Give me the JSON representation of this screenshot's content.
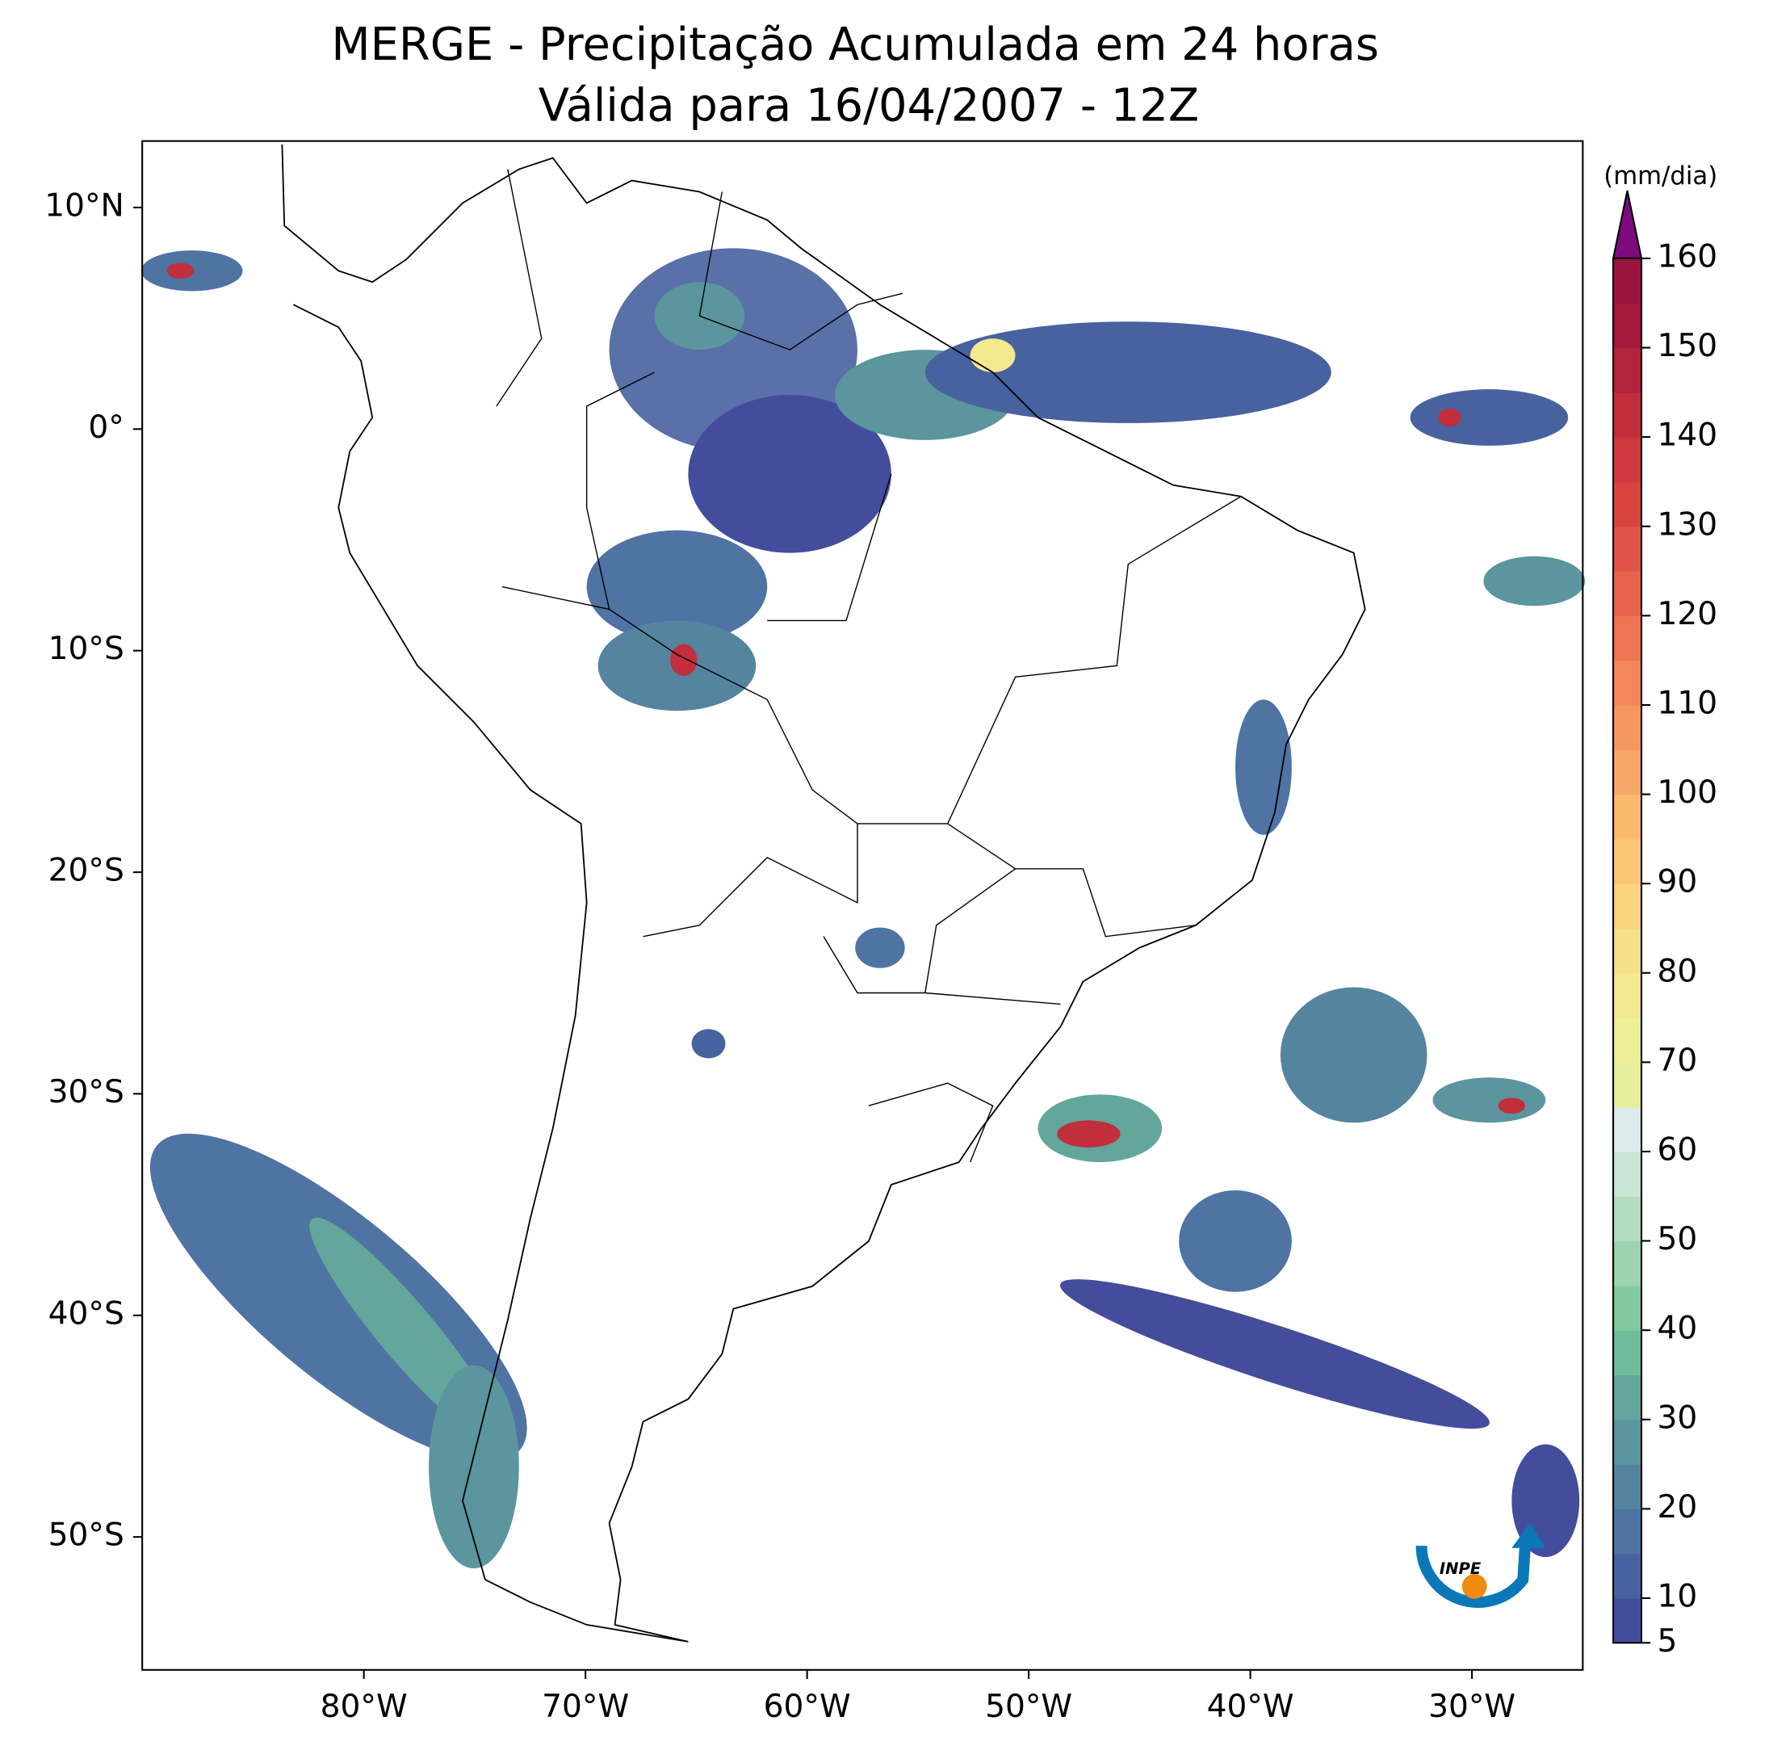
{
  "title": "MERGE - Precipitação Acumulada em 24 horas",
  "subtitle": "Válida para 16/04/2007 - 12Z",
  "map": {
    "xlim": [
      -90,
      -25
    ],
    "ylim": [
      -56,
      13
    ],
    "xticks": [
      {
        "value": -80,
        "label": "80°W"
      },
      {
        "value": -70,
        "label": "70°W"
      },
      {
        "value": -60,
        "label": "60°W"
      },
      {
        "value": -50,
        "label": "50°W"
      },
      {
        "value": -40,
        "label": "40°W"
      },
      {
        "value": -30,
        "label": "30°W"
      }
    ],
    "yticks": [
      {
        "value": 10,
        "label": "10°N"
      },
      {
        "value": 0,
        "label": "0°"
      },
      {
        "value": -10,
        "label": "10°S"
      },
      {
        "value": -20,
        "label": "20°S"
      },
      {
        "value": -30,
        "label": "30°S"
      },
      {
        "value": -40,
        "label": "40°S"
      },
      {
        "value": -50,
        "label": "50°S"
      }
    ]
  },
  "colorbar": {
    "label": "(mm/dia)",
    "lim": [
      5,
      160
    ],
    "ticks": [
      5,
      10,
      20,
      30,
      40,
      50,
      60,
      70,
      80,
      90,
      100,
      110,
      120,
      130,
      140,
      150,
      160
    ],
    "levels": [
      5,
      10,
      15,
      20,
      25,
      30,
      35,
      40,
      45,
      50,
      55,
      60,
      65,
      70,
      75,
      80,
      85,
      90,
      95,
      100,
      105,
      110,
      115,
      120,
      125,
      130,
      135,
      140,
      145,
      150,
      155,
      160
    ],
    "colors": [
      "#444d9b",
      "#48619f",
      "#4f73a3",
      "#55849f",
      "#5b959d",
      "#63a69b",
      "#6ebd9a",
      "#84caa1",
      "#9dd3ae",
      "#b4ddbf",
      "#c9e6d6",
      "#dcecea",
      "#e6f09a",
      "#eef098",
      "#f4e98e",
      "#f7e08a",
      "#fad47f",
      "#fbc677",
      "#fbb86f",
      "#f9a867",
      "#f79760",
      "#f3865a",
      "#ef7553",
      "#e8644d",
      "#e05447",
      "#d84541",
      "#ce393e",
      "#c22e3c",
      "#b4233c",
      "#a5193c",
      "#9b1440"
    ],
    "extend_color": "#7e0a7c"
  },
  "logo": {
    "text": "INPE"
  }
}
